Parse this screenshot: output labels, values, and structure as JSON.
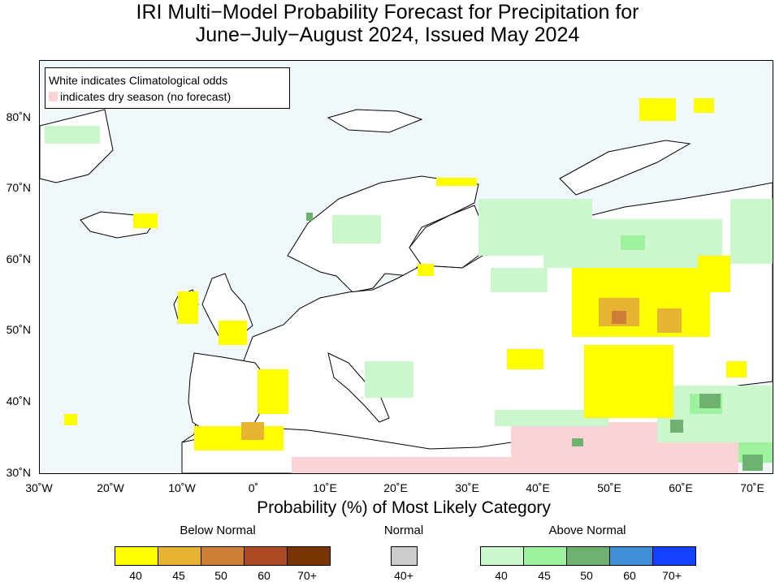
{
  "title": {
    "line1": "IRI Multi−Model Probability Forecast for Precipitation for",
    "line2": "June−July−August 2024, Issued May 2024"
  },
  "map_legend": {
    "line1": "White indicates Climatological odds",
    "line2": "indicates dry season (no forecast)"
  },
  "lat_labels": [
    "80˚N",
    "70˚N",
    "60˚N",
    "50˚N",
    "40˚N",
    "30˚N"
  ],
  "lon_labels": [
    "30˚W",
    "20˚W",
    "10˚W",
    "0˚",
    "10˚E",
    "20˚E",
    "30˚E",
    "40˚E",
    "50˚E",
    "60˚E",
    "70˚E"
  ],
  "colorbar": {
    "title": "Probability (%) of Most Likely Category",
    "below_normal": {
      "label": "Below Normal",
      "colors": [
        "#ffff00",
        "#e6b430",
        "#cd7e37",
        "#ad4a23",
        "#7a3404"
      ],
      "ticks": [
        "40",
        "45",
        "50",
        "60",
        "70+"
      ]
    },
    "normal": {
      "label": "Normal",
      "colors": [
        "#cccccc"
      ],
      "ticks": [
        "40+"
      ]
    },
    "above_normal": {
      "label": "Above Normal",
      "colors": [
        "#ccf7cc",
        "#9df29e",
        "#6fb26f",
        "#3f8fd6",
        "#1440ff"
      ],
      "ticks": [
        "40",
        "45",
        "50",
        "60",
        "70+"
      ]
    }
  },
  "colors": {
    "ocean": "#f1f8fc",
    "dry_season": "#fbd3d6",
    "land": "#ffffff"
  }
}
